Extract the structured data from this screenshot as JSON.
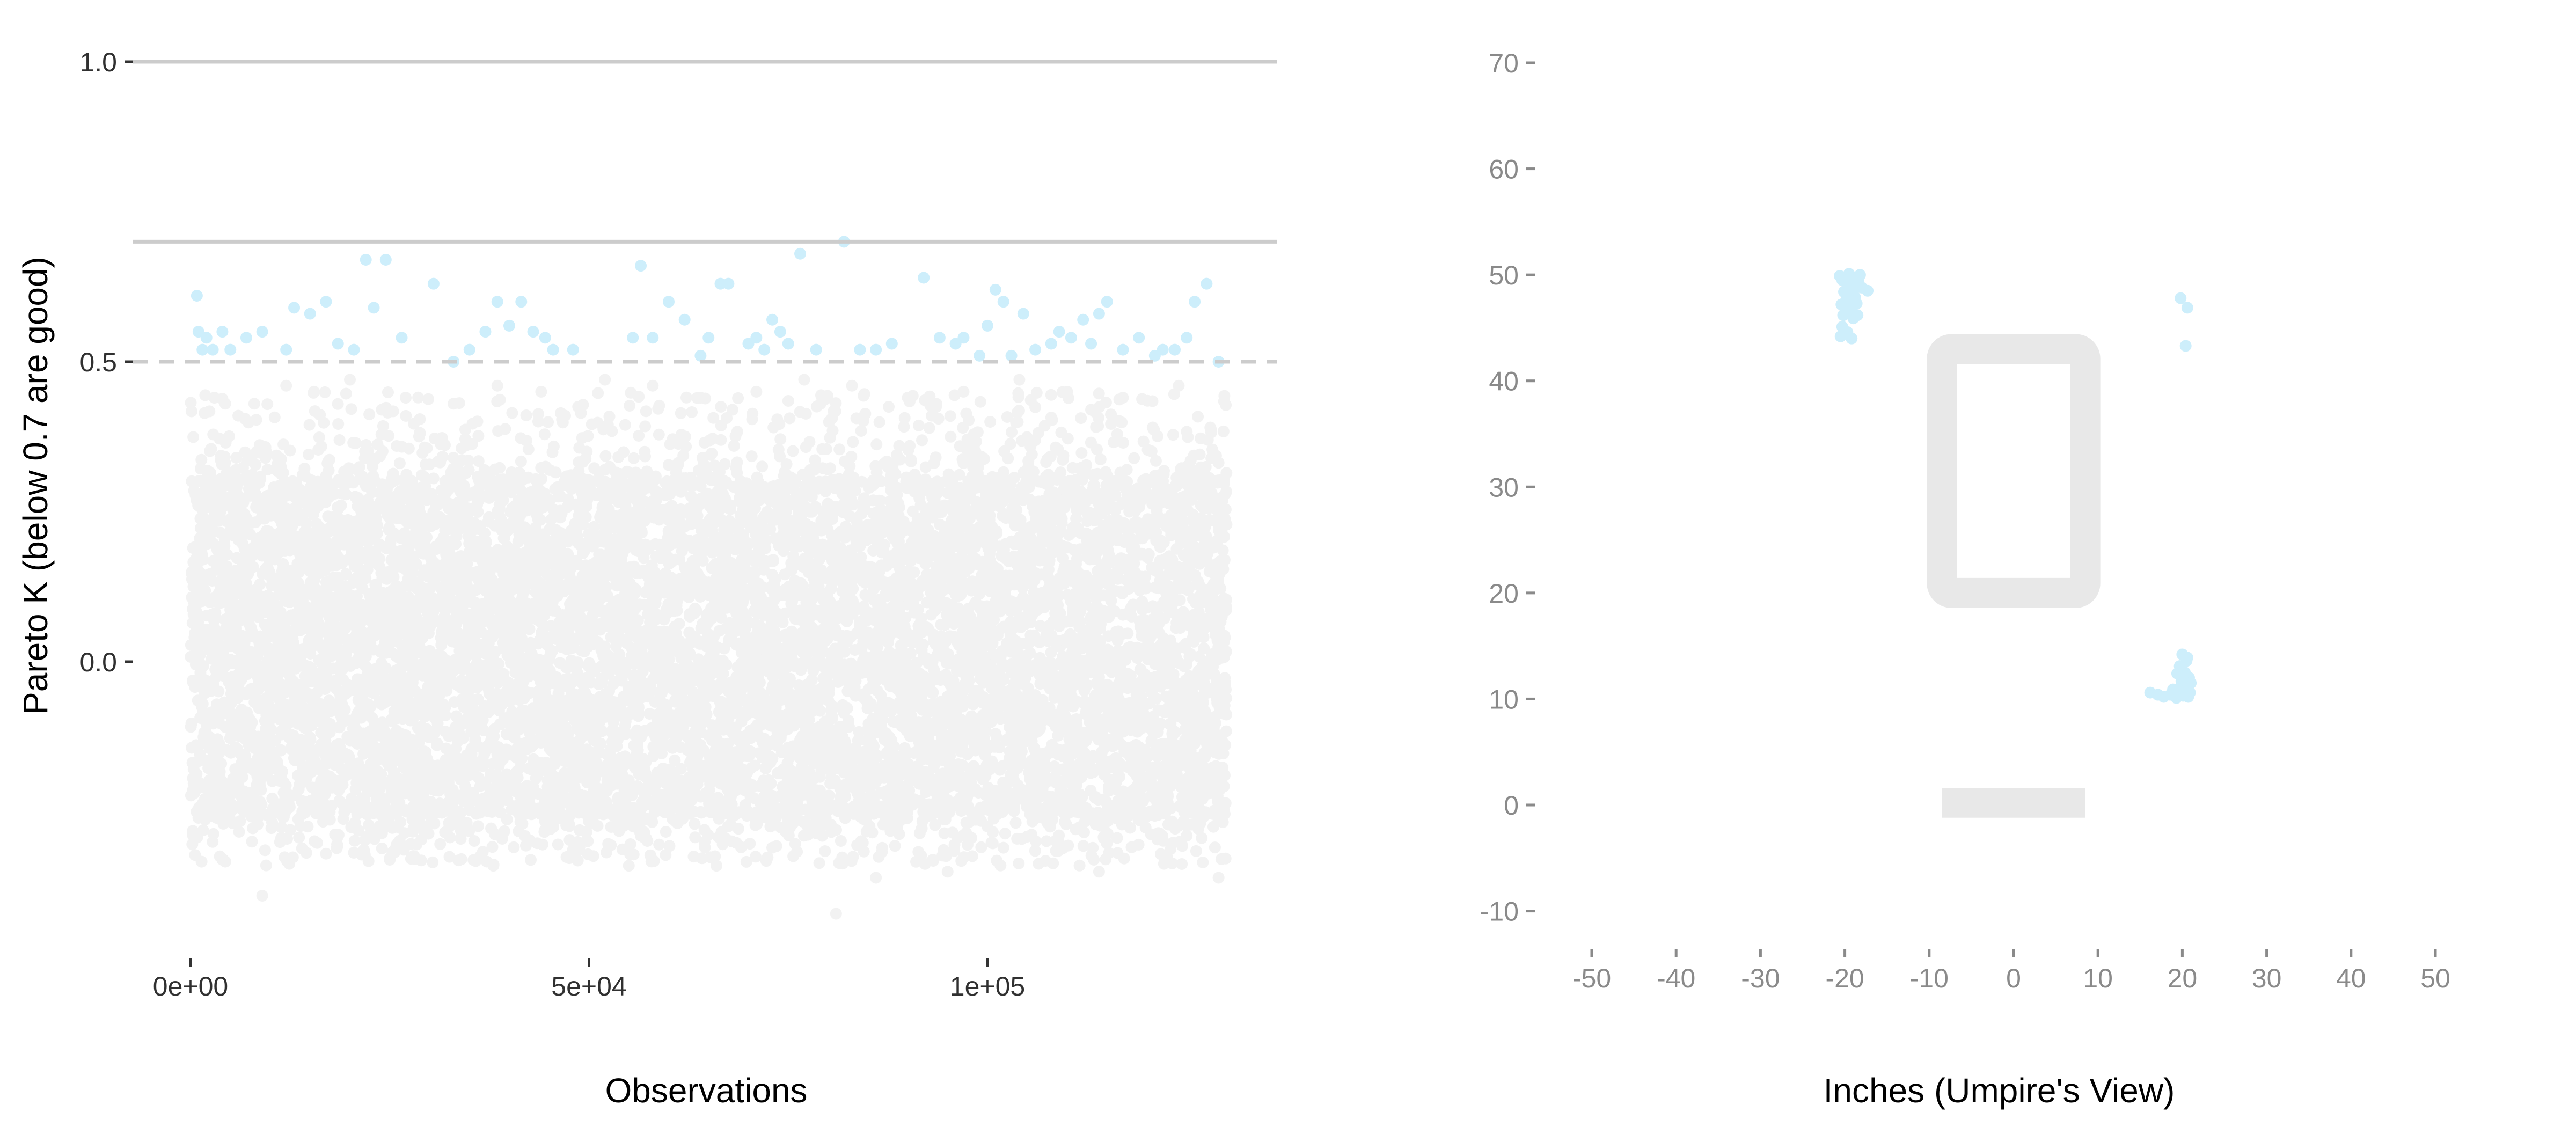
{
  "chart_data": [
    {
      "type": "scatter",
      "title": "",
      "xlabel": "Observations",
      "ylabel": "Pareto K (below 0.7 are good)",
      "xlim": [
        -6800,
        137000
      ],
      "ylim": [
        -0.45,
        1.05
      ],
      "x_ticks": [
        0,
        50000,
        100000
      ],
      "x_tick_labels": [
        "0e+00",
        "5e+04",
        "1e+05"
      ],
      "y_ticks": [
        0.0,
        0.5,
        1.0
      ],
      "y_tick_labels": [
        "0.0",
        "0.5",
        "1.0"
      ],
      "n_observations": 130000,
      "reference_lines": [
        {
          "y": 1.0,
          "style": "solid"
        },
        {
          "y": 0.7,
          "style": "solid"
        },
        {
          "y": 0.5,
          "style": "dashed"
        }
      ],
      "colors": {
        "low_k": "#f2f2f2",
        "high_k": "#cdeefb",
        "reference": "#cccccc"
      },
      "bulk_band": {
        "y_min": -0.25,
        "y_max": 0.3
      },
      "scattered_low_k": [
        [
          3000,
          0.44
        ],
        [
          8000,
          0.43
        ],
        [
          12000,
          0.46
        ],
        [
          15500,
          0.45
        ],
        [
          20000,
          0.47
        ],
        [
          27000,
          0.44
        ],
        [
          33000,
          0.43
        ],
        [
          38500,
          0.46
        ],
        [
          44000,
          0.45
        ],
        [
          52000,
          0.47
        ],
        [
          58000,
          0.46
        ],
        [
          64000,
          0.44
        ],
        [
          71000,
          0.45
        ],
        [
          77000,
          0.47
        ],
        [
          83000,
          0.46
        ],
        [
          90000,
          0.44
        ],
        [
          97000,
          0.45
        ],
        [
          104000,
          0.47
        ],
        [
          110000,
          0.45
        ],
        [
          117000,
          0.44
        ],
        [
          124000,
          0.46
        ],
        [
          6000,
          0.41
        ],
        [
          24000,
          0.42
        ],
        [
          47000,
          0.41
        ],
        [
          68000,
          0.42
        ],
        [
          93000,
          0.41
        ],
        [
          113000,
          0.42
        ],
        [
          9000,
          -0.39
        ],
        [
          25000,
          -0.33
        ],
        [
          38000,
          -0.34
        ],
        [
          55000,
          -0.34
        ],
        [
          66000,
          -0.34
        ],
        [
          81000,
          -0.42
        ],
        [
          86000,
          -0.36
        ],
        [
          102000,
          -0.31
        ],
        [
          114000,
          -0.35
        ],
        [
          125000,
          -0.29
        ],
        [
          129000,
          -0.36
        ],
        [
          17000,
          -0.32
        ],
        [
          4000,
          -0.33
        ],
        [
          73000,
          -0.31
        ],
        [
          95000,
          -0.35
        ]
      ],
      "highlighted_points": [
        [
          800,
          0.61
        ],
        [
          1000,
          0.55
        ],
        [
          1500,
          0.52
        ],
        [
          2000,
          0.54
        ],
        [
          2800,
          0.52
        ],
        [
          4000,
          0.55
        ],
        [
          5000,
          0.52
        ],
        [
          7000,
          0.54
        ],
        [
          9000,
          0.55
        ],
        [
          12000,
          0.52
        ],
        [
          13000,
          0.59
        ],
        [
          15000,
          0.58
        ],
        [
          17000,
          0.6
        ],
        [
          18500,
          0.53
        ],
        [
          20500,
          0.52
        ],
        [
          22000,
          0.67
        ],
        [
          23000,
          0.59
        ],
        [
          24500,
          0.67
        ],
        [
          26500,
          0.54
        ],
        [
          30500,
          0.63
        ],
        [
          33000,
          0.5
        ],
        [
          35000,
          0.52
        ],
        [
          37000,
          0.55
        ],
        [
          38500,
          0.6
        ],
        [
          40000,
          0.56
        ],
        [
          41500,
          0.6
        ],
        [
          43000,
          0.55
        ],
        [
          44500,
          0.54
        ],
        [
          45500,
          0.52
        ],
        [
          48000,
          0.52
        ],
        [
          55500,
          0.54
        ],
        [
          56500,
          0.66
        ],
        [
          58000,
          0.54
        ],
        [
          60000,
          0.6
        ],
        [
          62000,
          0.57
        ],
        [
          64000,
          0.51
        ],
        [
          65000,
          0.54
        ],
        [
          66500,
          0.63
        ],
        [
          67500,
          0.63
        ],
        [
          70000,
          0.53
        ],
        [
          71000,
          0.54
        ],
        [
          72000,
          0.52
        ],
        [
          73000,
          0.57
        ],
        [
          74000,
          0.55
        ],
        [
          75000,
          0.53
        ],
        [
          76500,
          0.68
        ],
        [
          78500,
          0.52
        ],
        [
          82000,
          0.7
        ],
        [
          84000,
          0.52
        ],
        [
          86000,
          0.52
        ],
        [
          88000,
          0.53
        ],
        [
          92000,
          0.64
        ],
        [
          94000,
          0.54
        ],
        [
          96000,
          0.53
        ],
        [
          97000,
          0.54
        ],
        [
          99000,
          0.51
        ],
        [
          100000,
          0.56
        ],
        [
          101000,
          0.62
        ],
        [
          102000,
          0.6
        ],
        [
          103000,
          0.51
        ],
        [
          104500,
          0.58
        ],
        [
          106000,
          0.52
        ],
        [
          108000,
          0.53
        ],
        [
          109000,
          0.55
        ],
        [
          110500,
          0.54
        ],
        [
          112000,
          0.57
        ],
        [
          113000,
          0.53
        ],
        [
          114000,
          0.58
        ],
        [
          115000,
          0.6
        ],
        [
          117000,
          0.52
        ],
        [
          119000,
          0.54
        ],
        [
          121000,
          0.51
        ],
        [
          122000,
          0.52
        ],
        [
          123500,
          0.52
        ],
        [
          125000,
          0.54
        ],
        [
          126000,
          0.6
        ],
        [
          127500,
          0.63
        ],
        [
          129000,
          0.5
        ]
      ]
    },
    {
      "type": "scatter",
      "title": "",
      "xlabel": "Inches (Umpire's View)",
      "ylabel": "",
      "xlim": [
        -55,
        55
      ],
      "ylim": [
        -14,
        73
      ],
      "x_ticks": [
        -50,
        -40,
        -30,
        -20,
        -10,
        0,
        10,
        20,
        30,
        40,
        50
      ],
      "x_tick_labels": [
        "-50",
        "-40",
        "-30",
        "-20",
        "-10",
        "0",
        "10",
        "20",
        "30",
        "40",
        "50"
      ],
      "y_ticks": [
        -10,
        0,
        10,
        20,
        30,
        40,
        50,
        60,
        70
      ],
      "y_tick_labels": [
        "-10",
        "0",
        "10",
        "20",
        "30",
        "40",
        "50",
        "60",
        "70"
      ],
      "strike_zone": {
        "x": [
          -8.5,
          8.5
        ],
        "y": [
          20,
          43
        ],
        "stroke": "#e8e8e8"
      },
      "home_plate": {
        "x": [
          -8.5,
          8.5
        ],
        "y": [
          -1.2,
          1.6
        ],
        "fill": "#e8e8e8"
      },
      "point_color": "#cdeefb",
      "points": [
        [
          -20.3,
          49.5
        ],
        [
          -19.8,
          49.2
        ],
        [
          -19.4,
          49.6
        ],
        [
          -18.9,
          49.0
        ],
        [
          -18.4,
          49.4
        ],
        [
          -18.0,
          48.8
        ],
        [
          -20.1,
          48.4
        ],
        [
          -19.5,
          48.0
        ],
        [
          -18.8,
          47.9
        ],
        [
          -20.4,
          47.2
        ],
        [
          -19.9,
          47.5
        ],
        [
          -19.2,
          47.0
        ],
        [
          -18.6,
          47.3
        ],
        [
          -20.2,
          46.2
        ],
        [
          -19.6,
          46.5
        ],
        [
          -19.0,
          45.9
        ],
        [
          -20.3,
          45.1
        ],
        [
          -19.7,
          44.6
        ],
        [
          -20.5,
          44.2
        ],
        [
          -19.2,
          44.0
        ],
        [
          -17.3,
          48.5
        ],
        [
          -18.2,
          50.0
        ],
        [
          -19.5,
          50.1
        ],
        [
          -20.6,
          49.9
        ],
        [
          -19.0,
          48.6
        ],
        [
          -20.0,
          46.9
        ],
        [
          -18.5,
          46.2
        ],
        [
          19.8,
          47.8
        ],
        [
          20.6,
          46.9
        ],
        [
          20.4,
          43.3
        ],
        [
          20.0,
          14.2
        ],
        [
          20.5,
          13.6
        ],
        [
          19.7,
          13.1
        ],
        [
          20.3,
          12.5
        ],
        [
          20.8,
          12.0
        ],
        [
          19.9,
          11.7
        ],
        [
          20.4,
          11.2
        ],
        [
          19.5,
          10.9
        ],
        [
          20.9,
          10.6
        ],
        [
          20.1,
          10.3
        ],
        [
          19.3,
          10.1
        ],
        [
          18.6,
          10.4
        ],
        [
          17.8,
          10.2
        ],
        [
          17.1,
          10.4
        ],
        [
          16.2,
          10.6
        ],
        [
          20.6,
          13.9
        ],
        [
          19.4,
          12.4
        ],
        [
          20.7,
          10.2
        ],
        [
          18.9,
          10.9
        ],
        [
          21.0,
          11.5
        ]
      ]
    }
  ]
}
